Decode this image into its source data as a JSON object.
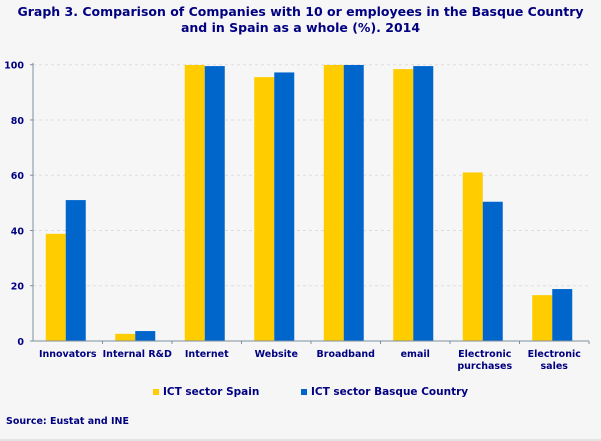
{
  "chart_data": {
    "type": "bar",
    "title": "Graph 3. Comparison of Companies with 10 or employees in the Basque Country and in Spain as a whole (%). 2014",
    "title_lines": [
      "Graph 3. Comparison of Companies with 10 or employees in the Basque Country",
      "and in Spain as a whole (%). 2014"
    ],
    "categories": [
      "Innovators",
      "Internal R&D",
      "Internet",
      "Website",
      "Broadband",
      "email",
      "Electronic purchases",
      "Electronic sales"
    ],
    "category_lines": [
      [
        "Innovators"
      ],
      [
        "Internal R&D"
      ],
      [
        "Internet"
      ],
      [
        "Website"
      ],
      [
        "Broadband"
      ],
      [
        "email"
      ],
      [
        "Electronic",
        "purchases"
      ],
      [
        "Electronic",
        "sales"
      ]
    ],
    "series": [
      {
        "name": "ICT sector Spain",
        "color": "#ffcc00",
        "values": [
          38.8,
          2.6,
          99.9,
          95.5,
          99.9,
          98.4,
          61.0,
          16.6
        ]
      },
      {
        "name": "ICT sector Basque Country",
        "color": "#0066cc",
        "values": [
          51.0,
          3.6,
          99.5,
          97.2,
          99.9,
          99.5,
          50.4,
          18.8
        ]
      }
    ],
    "ylim": [
      0,
      100
    ],
    "yticks": [
      0,
      20,
      40,
      60,
      80,
      100
    ],
    "grid": true,
    "legend": "bottom",
    "source": "Source: Eustat and INE"
  }
}
